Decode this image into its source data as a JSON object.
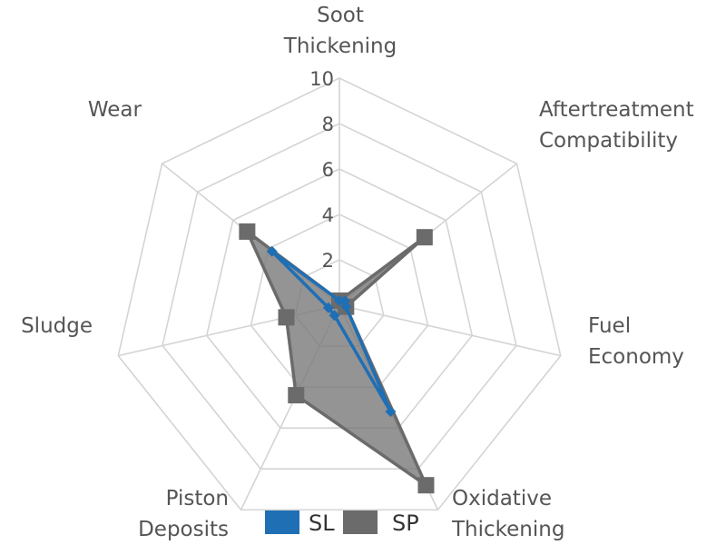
{
  "chart_data": {
    "type": "radar",
    "axes": [
      [
        "Soot",
        "Thickening"
      ],
      [
        "Aftertreatment",
        "Compatibility"
      ],
      [
        "Fuel",
        "Economy"
      ],
      [
        "Oxidative",
        "Thickening"
      ],
      [
        "Piston",
        "Deposits"
      ],
      [
        "Sludge"
      ],
      [
        "Wear"
      ]
    ],
    "rlim": [
      0,
      10
    ],
    "ticks": [
      "2",
      "4",
      "6",
      "8",
      "10"
    ],
    "tick_values": [
      2,
      4,
      6,
      8,
      10
    ],
    "grid": true,
    "legend_position": "bottom",
    "series": [
      {
        "name": "SL",
        "color": "#1f6fb5",
        "values": [
          0.2,
          0.3,
          0.3,
          5.2,
          0.5,
          0.5,
          3.8
        ],
        "fill": false,
        "marker": "diamond"
      },
      {
        "name": "SP",
        "color": "#6b6b6b",
        "fill_color": "#7d7d7d",
        "values": [
          0.2,
          4.8,
          0.3,
          8.8,
          4.4,
          2.4,
          5.2
        ],
        "fill": true,
        "marker": "square"
      }
    ]
  }
}
